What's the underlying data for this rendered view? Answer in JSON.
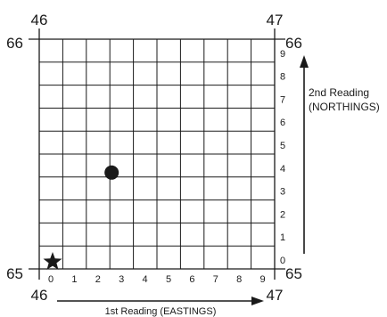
{
  "grid": {
    "corner_labels": {
      "top_left": "46",
      "top_right": "47",
      "bottom_left": "46",
      "bottom_right": "47",
      "left_top": "66",
      "left_bottom": "65",
      "right_top": "66",
      "right_bottom": "65"
    },
    "x_digits": [
      "0",
      "1",
      "2",
      "3",
      "4",
      "5",
      "6",
      "7",
      "8",
      "9"
    ],
    "y_digits": [
      "0",
      "1",
      "2",
      "3",
      "4",
      "5",
      "6",
      "7",
      "8",
      "9"
    ],
    "divisions": 10
  },
  "markers": {
    "dot": {
      "easting": 3,
      "northing": 4
    },
    "star": {
      "easting": 0,
      "northing": 0
    }
  },
  "axes": {
    "northings_line1": "2nd Reading",
    "northings_line2": "(NORTHINGS)",
    "eastings": "1st Reading (EASTINGS)"
  },
  "colors": {
    "ink": "#1a1a1a"
  }
}
